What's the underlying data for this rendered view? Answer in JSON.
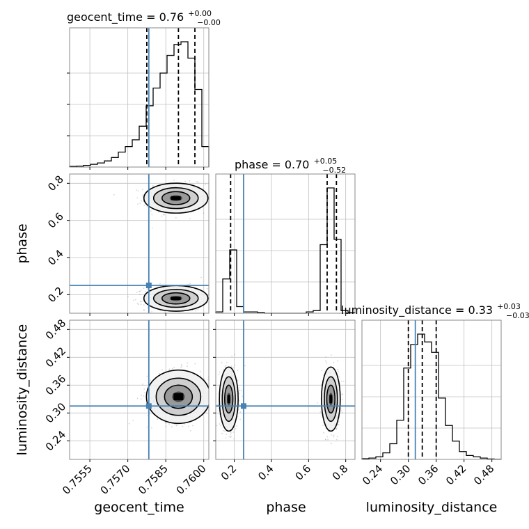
{
  "page": {
    "kind": "corner-plot"
  },
  "chart_data": {
    "type": "corner",
    "parameters": [
      "geocent_time",
      "phase",
      "luminosity_distance"
    ],
    "truths": {
      "geocent_time": 0.75783,
      "phase": 0.25,
      "luminosity_distance": 0.315
    },
    "titles": [
      {
        "param": "geocent_time",
        "label": "geocent_time = 0.76",
        "plus": "+0.00",
        "minus": "−0.00",
        "median": 0.759,
        "lo": 0.75775,
        "hi": 0.75965
      },
      {
        "param": "phase",
        "label": "phase = 0.70",
        "plus": "+0.05",
        "minus": "−0.52",
        "median": 0.7,
        "lo": 0.18,
        "hi": 0.75
      },
      {
        "param": "luminosity_distance",
        "label": "luminosity_distance = 0.33",
        "plus": "+0.03",
        "minus": "−0.03",
        "median": 0.33,
        "lo": 0.3,
        "hi": 0.36
      }
    ],
    "axes": {
      "geocent_time": {
        "range": [
          0.7547,
          0.7602
        ],
        "ticks": [
          0.7555,
          0.757,
          0.7585,
          0.76
        ],
        "tick_labels": [
          "0.7555",
          "0.7570",
          "0.7585",
          "0.7600"
        ],
        "label": "geocent_time"
      },
      "phase": {
        "range": [
          0.1,
          0.85
        ],
        "ticks": [
          0.2,
          0.4,
          0.6,
          0.8
        ],
        "tick_labels": [
          "0.2",
          "0.4",
          "0.6",
          "0.8"
        ],
        "label": "phase"
      },
      "luminosity_distance": {
        "range": [
          0.2,
          0.5
        ],
        "ticks": [
          0.24,
          0.3,
          0.36,
          0.42,
          0.48
        ],
        "tick_labels": [
          "0.24",
          "0.30",
          "0.36",
          "0.42",
          "0.48"
        ],
        "label": "luminosity_distance"
      }
    },
    "histograms": {
      "geocent_time": {
        "edges": [
          0.7547,
          0.754975,
          0.75525,
          0.755525,
          0.7558,
          0.756075,
          0.75635,
          0.756625,
          0.7569,
          0.757175,
          0.75745,
          0.757725,
          0.758,
          0.758275,
          0.75855,
          0.758825,
          0.7591,
          0.759375,
          0.75965,
          0.759925,
          0.7602
        ],
        "counts": [
          0.005,
          0.007,
          0.012,
          0.02,
          0.03,
          0.045,
          0.07,
          0.11,
          0.15,
          0.2,
          0.3,
          0.45,
          0.58,
          0.69,
          0.82,
          0.9,
          0.92,
          0.8,
          0.57,
          0.15
        ]
      },
      "phase": {
        "edges": [
          0.1,
          0.1375,
          0.175,
          0.2125,
          0.25,
          0.2875,
          0.325,
          0.3625,
          0.4,
          0.4375,
          0.475,
          0.5125,
          0.55,
          0.5875,
          0.625,
          0.6625,
          0.7,
          0.7375,
          0.775,
          0.8125,
          0.85
        ],
        "counts": [
          0.01,
          0.26,
          0.48,
          0.05,
          0.01,
          0.01,
          0.005,
          0,
          0,
          0,
          0,
          0,
          0,
          0.01,
          0.02,
          0.52,
          0.95,
          0.56,
          0.02,
          0.005
        ]
      },
      "luminosity_distance": {
        "edges": [
          0.2,
          0.215,
          0.23,
          0.245,
          0.26,
          0.275,
          0.29,
          0.305,
          0.32,
          0.335,
          0.35,
          0.365,
          0.38,
          0.395,
          0.41,
          0.425,
          0.44,
          0.455,
          0.47,
          0.485,
          0.5
        ],
        "counts": [
          0.005,
          0.01,
          0.02,
          0.05,
          0.12,
          0.3,
          0.7,
          0.88,
          0.96,
          0.9,
          0.82,
          0.47,
          0.26,
          0.14,
          0.06,
          0.03,
          0.02,
          0.01,
          0.003,
          0.001
        ]
      }
    },
    "joint": [
      {
        "x": "geocent_time",
        "y": "phase",
        "clusters": [
          {
            "cx": 0.7589,
            "cy": 0.72,
            "sx": 0.00055,
            "sy": 0.035
          },
          {
            "cx": 0.7589,
            "cy": 0.18,
            "sx": 0.00055,
            "sy": 0.03
          }
        ]
      },
      {
        "x": "geocent_time",
        "y": "luminosity_distance",
        "clusters": [
          {
            "cx": 0.759,
            "cy": 0.335,
            "sx": 0.00055,
            "sy": 0.025
          }
        ]
      },
      {
        "x": "phase",
        "y": "luminosity_distance",
        "clusters": [
          {
            "cx": 0.72,
            "cy": 0.33,
            "sx": 0.022,
            "sy": 0.03
          },
          {
            "cx": 0.17,
            "cy": 0.33,
            "sx": 0.022,
            "sy": 0.03
          }
        ]
      }
    ],
    "colors": {
      "truth": "#4682b4",
      "hist": "#000000",
      "grid": "#c0c0c0",
      "scatter": "#888888",
      "frame": "#000000"
    },
    "grid": true
  }
}
